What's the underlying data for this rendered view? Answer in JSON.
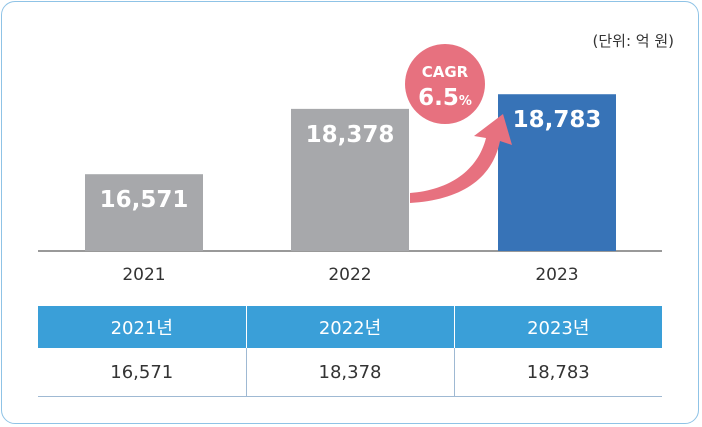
{
  "unit_label": "(단위: 억 원)",
  "colors": {
    "bar_gray": "#a7a8ab",
    "bar_highlight": "#3773b7",
    "cagr_bubble": "#e7717f",
    "table_header": "#3a9fd8",
    "border": "#8fc3e6"
  },
  "chart_data": {
    "type": "bar",
    "categories": [
      "2021",
      "2022",
      "2023"
    ],
    "values": [
      16571,
      18378,
      18783
    ],
    "value_labels": [
      "16,571",
      "18,378",
      "18,783"
    ],
    "highlight_index": 2,
    "annotation": {
      "line1": "CAGR",
      "value": "6.5",
      "suffix": "%"
    }
  },
  "table": {
    "headers": [
      "2021년",
      "2022년",
      "2023년"
    ],
    "values": [
      "16,571",
      "18,378",
      "18,783"
    ]
  }
}
